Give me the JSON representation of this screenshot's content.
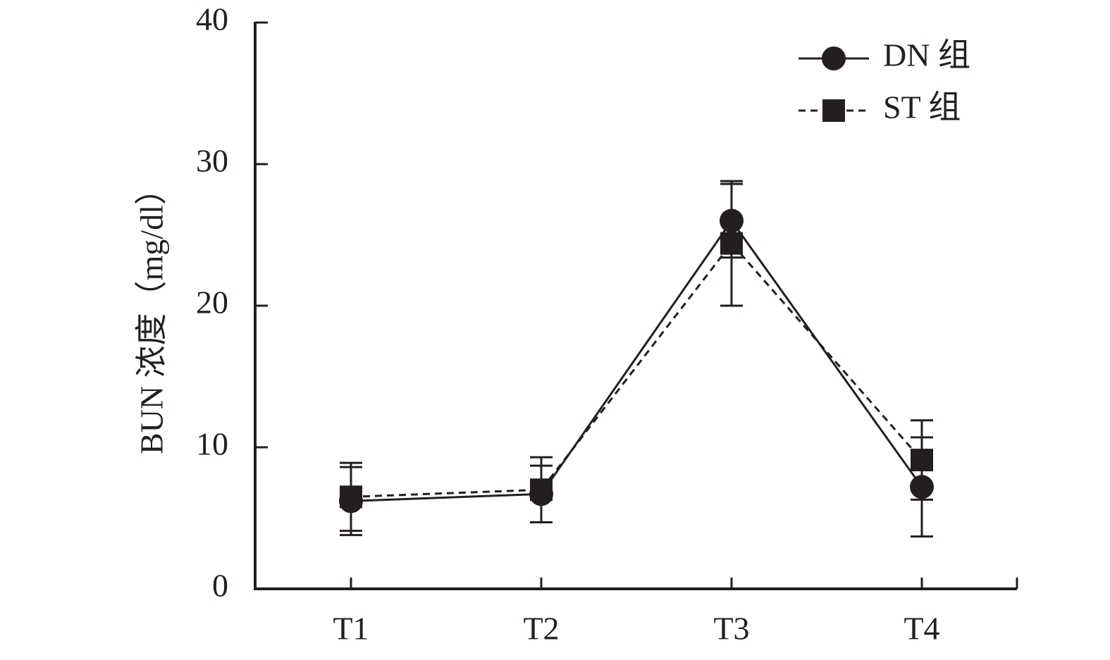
{
  "chart_data": {
    "type": "line",
    "y_label": "BUN 浓度（mg/dl）",
    "categories": [
      "T1",
      "T2",
      "T3",
      "T4"
    ],
    "series": [
      {
        "name": "DN 组",
        "color": "#231f20",
        "marker": "circle",
        "dash": "solid",
        "values": [
          6.2,
          6.7,
          26.0,
          7.2
        ],
        "errors": [
          2.4,
          2.0,
          2.6,
          3.5
        ]
      },
      {
        "name": "ST 组",
        "color": "#231f20",
        "marker": "square",
        "dash": "dashed",
        "values": [
          6.5,
          7.0,
          24.4,
          9.1
        ],
        "errors": [
          2.4,
          2.3,
          4.4,
          2.8
        ]
      }
    ],
    "ylim": [
      0,
      40
    ],
    "yticks": [
      0,
      10,
      20,
      30,
      40
    ],
    "grid": false,
    "legend": "upper right"
  }
}
